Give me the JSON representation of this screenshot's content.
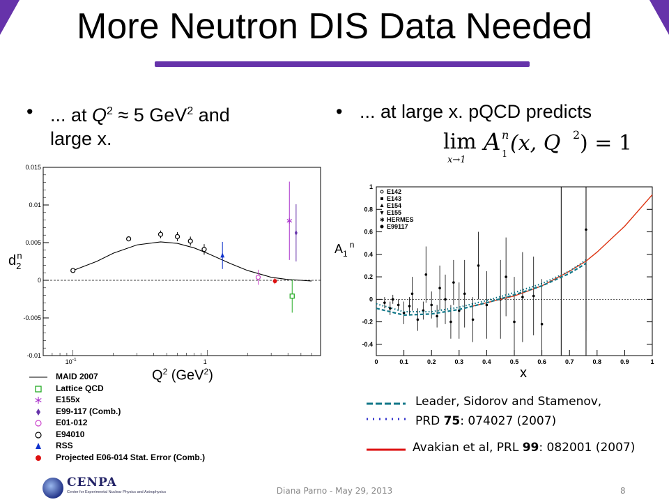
{
  "slide": {
    "title": "More Neutron DIS Data Needed",
    "accent_color": "#6633aa",
    "footer": "Diana Parno - May 29, 2013",
    "page_number": "8",
    "logo_text": "CENPA",
    "logo_subtext": "Center for Experimental Nuclear Physics and Astrophysics"
  },
  "bullets": {
    "left": {
      "line1_a": "... at ",
      "line1_q": "Q",
      "line1_b": " ≈ 5 GeV",
      "line1_c": " and",
      "line2": "large x."
    },
    "right": {
      "line1": "... at large x. pQCD predicts"
    },
    "formula": {
      "lim": "lim",
      "sub": "x→1",
      "A": "A",
      "sup": "n",
      "sub1": "1",
      "args": "(x, Q",
      "close": ") = 1"
    }
  },
  "legend_left": [
    {
      "label": "MAID 2007",
      "marker": "line"
    },
    {
      "label": "Lattice QCD",
      "marker": "open-square",
      "color": "#22aa22"
    },
    {
      "label": "E155x",
      "marker": "asterisk",
      "color": "#aa33cc"
    },
    {
      "label": "E99-117 (Comb.)",
      "marker": "diamond",
      "color": "#6633aa"
    },
    {
      "label": "E01-012",
      "marker": "open-circle",
      "color": "#cc44cc"
    },
    {
      "label": "E94010",
      "marker": "open-circle",
      "color": "#000000"
    },
    {
      "label": "RSS",
      "marker": "triangle",
      "color": "#1133cc"
    },
    {
      "label": "Projected E06-014 Stat. Error (Comb.)",
      "marker": "filled-circle",
      "color": "#dd1111"
    }
  ],
  "refs": {
    "leader": "Leader, Sidorov and Stamenov,",
    "leader2_a": "PRD ",
    "leader2_b": "75",
    "leader2_c": ": 074027 (2007)",
    "avakian_a": "Avakian et al, PRL ",
    "avakian_b": "99",
    "avakian_c": ": 082001 (2007)"
  },
  "chart_data": [
    {
      "type": "scatter",
      "ylabel_main": "d",
      "ylabel_sub": "2",
      "ylabel_sup": "n",
      "xlabel_main": "Q",
      "xlabel_sup": "2",
      "xlabel_unit_a": " (GeV",
      "xlabel_unit_b": ")",
      "xscale": "log",
      "xlim": [
        0.06,
        7
      ],
      "ylim": [
        -0.01,
        0.015
      ],
      "yticks": [
        "0.015",
        "0.01",
        "0.005",
        "0",
        "-0.005",
        "-0.01"
      ],
      "xticks": [
        {
          "value": 0.1,
          "label": "10",
          "sup": "-1"
        },
        {
          "value": 1,
          "label": "1",
          "sup": ""
        }
      ],
      "maid_curve": [
        [
          0.1,
          0.0013
        ],
        [
          0.15,
          0.0025
        ],
        [
          0.2,
          0.0036
        ],
        [
          0.3,
          0.0047
        ],
        [
          0.45,
          0.0051
        ],
        [
          0.6,
          0.0049
        ],
        [
          0.8,
          0.0043
        ],
        [
          1.0,
          0.0036
        ],
        [
          1.5,
          0.0022
        ],
        [
          2,
          0.0013
        ],
        [
          3,
          0.0004
        ],
        [
          4,
          0.0001
        ],
        [
          5,
          0.0
        ],
        [
          6,
          -0.0001
        ]
      ],
      "series": [
        {
          "name": "E94010",
          "marker": "open-circle",
          "color": "#000000",
          "points": [
            [
              0.1,
              0.0013,
              0
            ],
            [
              0.26,
              0.0055,
              0
            ],
            [
              0.45,
              0.0061,
              0.0005
            ],
            [
              0.6,
              0.0058,
              0.0006
            ],
            [
              0.75,
              0.0052,
              0.0006
            ],
            [
              0.95,
              0.0041,
              0.0007
            ]
          ]
        },
        {
          "name": "RSS",
          "marker": "triangle",
          "color": "#1133cc",
          "points": [
            [
              1.3,
              0.0033,
              0.0018
            ]
          ]
        },
        {
          "name": "E01-012",
          "marker": "open-circle",
          "color": "#cc44cc",
          "points": [
            [
              2.4,
              0.0004,
              0.001
            ]
          ]
        },
        {
          "name": "Projected E06-014 Stat. Error (Comb.)",
          "marker": "filled-circle",
          "color": "#dd1111",
          "points": [
            [
              3.2,
              -0.0001,
              0.0004
            ]
          ]
        },
        {
          "name": "Lattice QCD",
          "marker": "open-square",
          "color": "#22aa22",
          "points": [
            [
              4.3,
              -0.0021,
              0.0022
            ]
          ]
        },
        {
          "name": "E155x",
          "marker": "asterisk",
          "color": "#aa33cc",
          "points": [
            [
              4.1,
              0.0079,
              0.0052
            ]
          ]
        },
        {
          "name": "E99-117 (Comb.)",
          "marker": "diamond",
          "color": "#6633aa",
          "points": [
            [
              4.6,
              0.0063,
              0.0038
            ]
          ]
        }
      ]
    },
    {
      "type": "scatter",
      "ylabel_main": "A",
      "ylabel_sub": "1",
      "ylabel_sup": "n",
      "xlabel": "x",
      "xlim": [
        0,
        1
      ],
      "ylim": [
        -0.5,
        1
      ],
      "xticks": [
        "0",
        "0.1",
        "0.2",
        "0.3",
        "0.4",
        "0.5",
        "0.6",
        "0.7",
        "0.8",
        "0.9",
        "1"
      ],
      "yticks": [
        "1",
        "0.8",
        "0.6",
        "0.4",
        "0.2",
        "0",
        "-0.2",
        "-0.4"
      ],
      "legend": [
        "E142",
        "E143",
        "E154",
        "E155",
        "HERMES",
        "E99117"
      ],
      "vertical_lines_x": [
        0.67,
        0.76
      ],
      "curves": [
        {
          "name": "Avakian et al",
          "style": "solid",
          "color": "#dd3311",
          "points": [
            [
              0.35,
              -0.06
            ],
            [
              0.4,
              -0.03
            ],
            [
              0.5,
              0.03
            ],
            [
              0.6,
              0.12
            ],
            [
              0.7,
              0.25
            ],
            [
              0.76,
              0.34
            ],
            [
              0.8,
              0.42
            ],
            [
              0.9,
              0.65
            ],
            [
              1.0,
              0.93
            ]
          ]
        },
        {
          "name": "Leader, Sidorov and Stamenov",
          "style": "dashed",
          "color": "#117788",
          "points": [
            [
              0.0,
              -0.08
            ],
            [
              0.1,
              -0.14
            ],
            [
              0.2,
              -0.13
            ],
            [
              0.3,
              -0.09
            ],
            [
              0.4,
              -0.03
            ],
            [
              0.5,
              0.04
            ],
            [
              0.6,
              0.12
            ],
            [
              0.7,
              0.23
            ],
            [
              0.76,
              0.32
            ]
          ]
        },
        {
          "name": "Leader, Sidorov and Stamenov",
          "style": "dotted",
          "color": "#117788",
          "points": [
            [
              0.0,
              -0.04
            ],
            [
              0.1,
              -0.11
            ],
            [
              0.2,
              -0.11
            ],
            [
              0.3,
              -0.07
            ],
            [
              0.4,
              -0.01
            ],
            [
              0.5,
              0.06
            ],
            [
              0.6,
              0.14
            ],
            [
              0.7,
              0.25
            ],
            [
              0.76,
              0.35
            ]
          ]
        }
      ],
      "points": [
        [
          0.03,
          -0.03,
          0.05
        ],
        [
          0.05,
          -0.08,
          0.06
        ],
        [
          0.06,
          0.0,
          0.04
        ],
        [
          0.08,
          -0.05,
          0.05
        ],
        [
          0.1,
          -0.12,
          0.1
        ],
        [
          0.12,
          -0.06,
          0.08
        ],
        [
          0.13,
          0.05,
          0.15
        ],
        [
          0.15,
          -0.18,
          0.1
        ],
        [
          0.17,
          -0.1,
          0.08
        ],
        [
          0.18,
          0.22,
          0.25
        ],
        [
          0.2,
          -0.05,
          0.12
        ],
        [
          0.22,
          -0.15,
          0.1
        ],
        [
          0.23,
          0.1,
          0.2
        ],
        [
          0.25,
          0.0,
          0.22
        ],
        [
          0.27,
          -0.2,
          0.15
        ],
        [
          0.28,
          0.15,
          0.2
        ],
        [
          0.3,
          -0.1,
          0.25
        ],
        [
          0.32,
          0.05,
          0.3
        ],
        [
          0.35,
          -0.18,
          0.2
        ],
        [
          0.37,
          0.3,
          0.3
        ],
        [
          0.4,
          -0.05,
          0.3
        ],
        [
          0.45,
          0.0,
          0.35
        ],
        [
          0.47,
          0.2,
          0.35
        ],
        [
          0.5,
          -0.2,
          0.4
        ],
        [
          0.53,
          0.02,
          0.4
        ],
        [
          0.57,
          0.03,
          0.35
        ],
        [
          0.6,
          -0.22,
          0.4
        ],
        [
          0.76,
          0.62,
          0.9
        ]
      ]
    }
  ]
}
